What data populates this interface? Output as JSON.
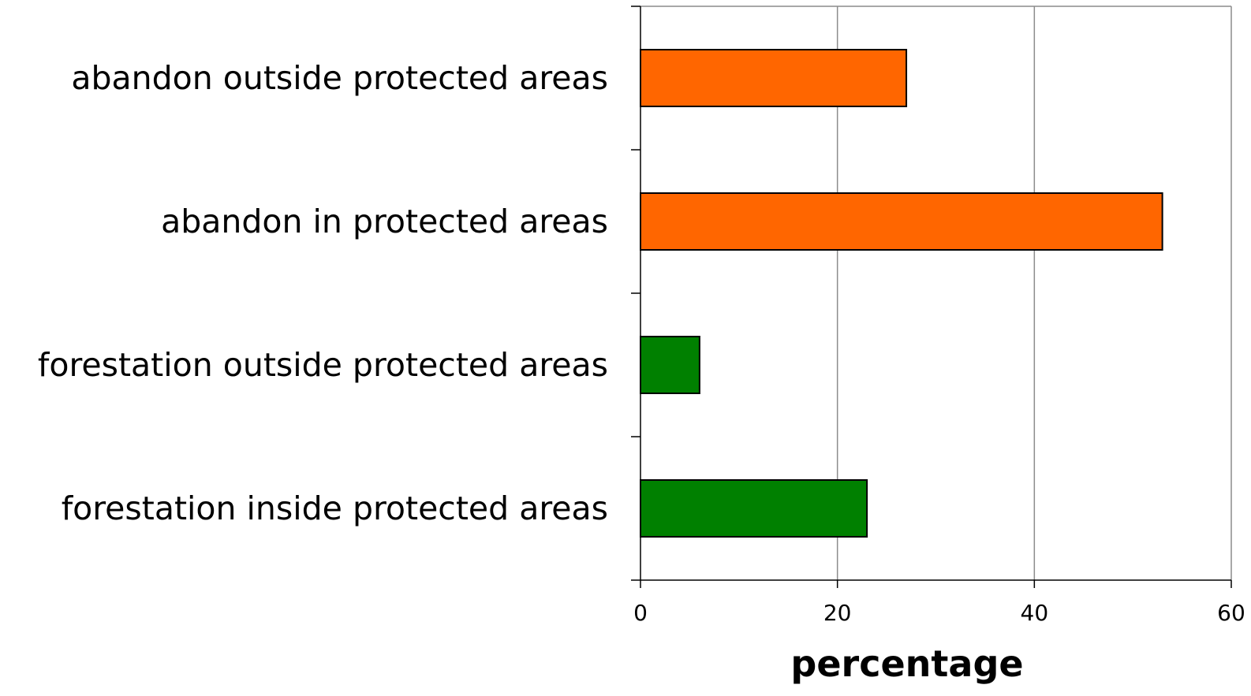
{
  "chart_data": {
    "type": "bar",
    "orientation": "horizontal",
    "title": "",
    "xlabel": "percentage",
    "ylabel": "",
    "xlim": [
      0,
      60
    ],
    "xticks": [
      0,
      20,
      40,
      60
    ],
    "grid": true,
    "legend": "none",
    "categories": [
      "abandon outside protected areas",
      "abandon in protected areas",
      "forestation outside protected areas",
      "forestation inside protected areas"
    ],
    "values": [
      27,
      53,
      6,
      23
    ],
    "bar_colors": [
      "#ff6600",
      "#ff6600",
      "#008000",
      "#008000"
    ]
  }
}
